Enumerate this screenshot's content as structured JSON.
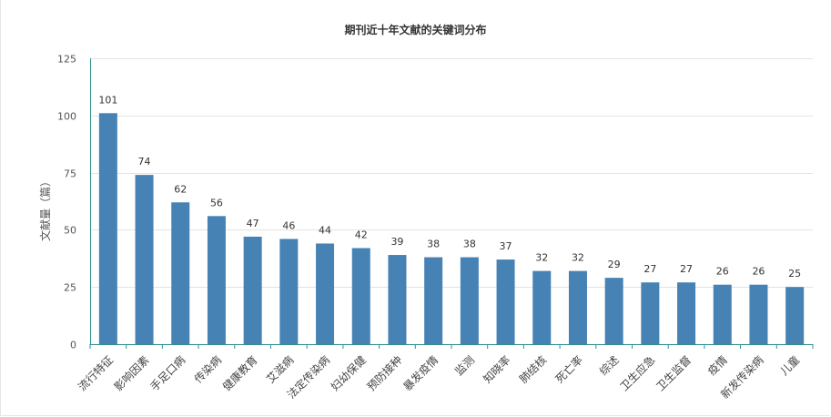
{
  "chart_data": {
    "type": "bar",
    "title": "期刊近十年文献的关键词分布",
    "ylabel": "文献量（篇）",
    "xlabel": "",
    "ylim": [
      0,
      125
    ],
    "yticks": [
      0,
      25,
      50,
      75,
      100,
      125
    ],
    "grid": true,
    "categories": [
      "流行特征",
      "影响因素",
      "手足口病",
      "传染病",
      "健康教育",
      "艾滋病",
      "法定传染病",
      "妇幼保健",
      "预防接种",
      "暴发疫情",
      "监测",
      "知晓率",
      "肺结核",
      "死亡率",
      "综述",
      "卫生应急",
      "卫生监督",
      "疫情",
      "新发传染病",
      "儿童"
    ],
    "values": [
      101,
      74,
      62,
      56,
      47,
      46,
      44,
      42,
      39,
      38,
      38,
      37,
      32,
      32,
      29,
      27,
      27,
      26,
      26,
      25
    ],
    "colors": {
      "bar": "#4682b4",
      "grid": "#e3e3e3",
      "axis": "#2f8f8f"
    }
  }
}
